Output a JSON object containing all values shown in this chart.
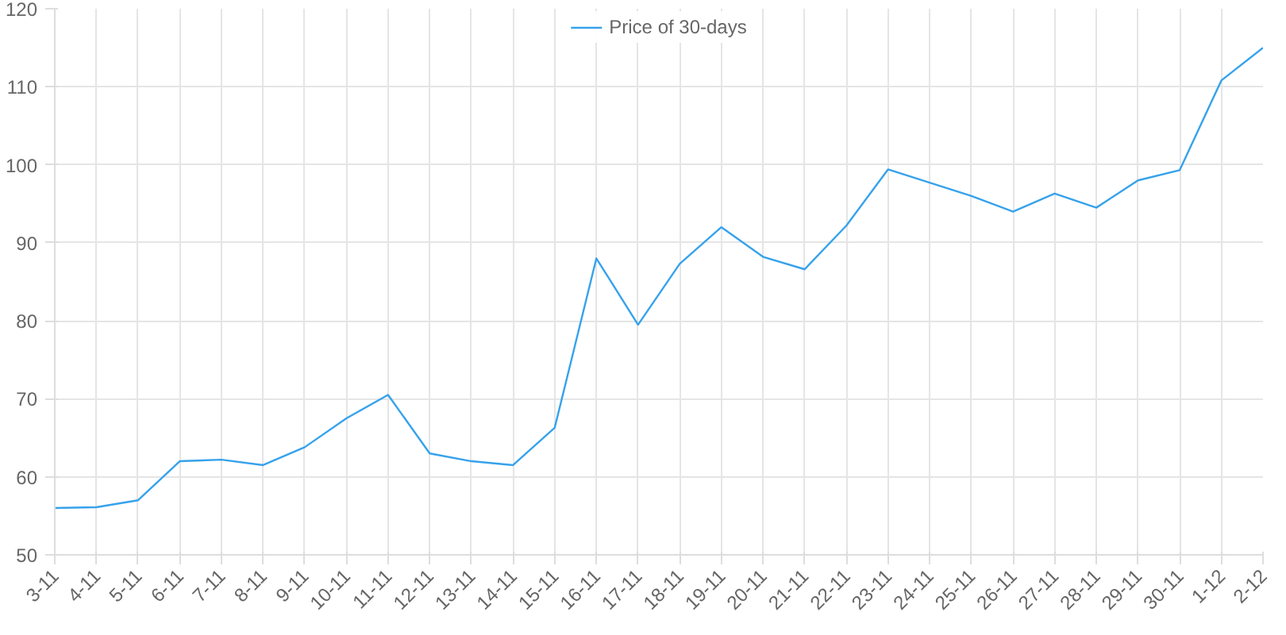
{
  "chart_data": {
    "type": "line",
    "categories": [
      "3-11",
      "4-11",
      "5-11",
      "6-11",
      "7-11",
      "8-11",
      "9-11",
      "10-11",
      "11-11",
      "12-11",
      "13-11",
      "14-11",
      "15-11",
      "16-11",
      "17-11",
      "18-11",
      "19-11",
      "20-11",
      "21-11",
      "22-11",
      "23-11",
      "24-11",
      "25-11",
      "26-11",
      "27-11",
      "28-11",
      "29-11",
      "30-11",
      "1-12",
      "2-12"
    ],
    "series": [
      {
        "name": "Price of 30-days",
        "color": "#36a2eb",
        "values": [
          56,
          56.1,
          57,
          62,
          62.2,
          61.5,
          63.8,
          67.5,
          70.5,
          63,
          62,
          61.5,
          66.3,
          88,
          79.5,
          87.3,
          92,
          88.2,
          86.6,
          92.2,
          99.4,
          97.7,
          96,
          94,
          96.3,
          94.5,
          98,
          99.3,
          110.8,
          115
        ]
      }
    ],
    "ylim": [
      50,
      120
    ],
    "yticks": [
      50,
      60,
      70,
      80,
      90,
      100,
      110,
      120
    ],
    "grid": true,
    "legend": "top",
    "marker": "none",
    "line_style": "solid"
  }
}
